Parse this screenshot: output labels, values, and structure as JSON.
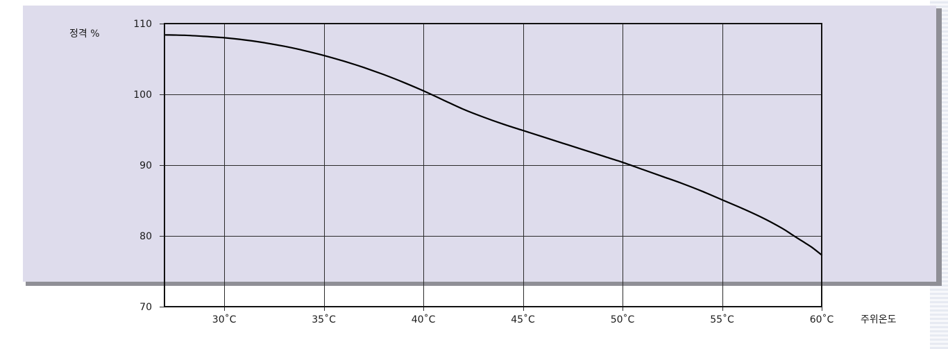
{
  "chart_data": {
    "type": "line",
    "title": "",
    "ylabel": "정격 %",
    "xlabel": "주위온도",
    "xlim": [
      27,
      60
    ],
    "ylim": [
      70,
      110
    ],
    "x_ticks": [
      {
        "value": 30,
        "label": "30˚C"
      },
      {
        "value": 35,
        "label": "35˚C"
      },
      {
        "value": 40,
        "label": "40˚C"
      },
      {
        "value": 45,
        "label": "45˚C"
      },
      {
        "value": 50,
        "label": "50˚C"
      },
      {
        "value": 55,
        "label": "55˚C"
      },
      {
        "value": 60,
        "label": "60˚C"
      }
    ],
    "y_ticks": [
      {
        "value": 70,
        "label": "70"
      },
      {
        "value": 80,
        "label": "80"
      },
      {
        "value": 90,
        "label": "90"
      },
      {
        "value": 100,
        "label": "100"
      },
      {
        "value": 110,
        "label": "110"
      }
    ],
    "grid": true,
    "series": [
      {
        "name": "",
        "x": [
          27,
          28,
          29,
          30,
          31,
          32,
          33,
          34,
          35,
          36,
          37,
          38,
          39,
          40,
          41,
          42,
          43,
          44,
          45,
          46,
          47,
          48,
          49,
          50,
          51,
          52,
          53,
          54,
          55,
          56,
          57,
          58,
          58.5,
          59,
          59.5,
          60
        ],
        "y": [
          108.4,
          108.35,
          108.2,
          108.0,
          107.7,
          107.3,
          106.8,
          106.2,
          105.5,
          104.7,
          103.8,
          102.8,
          101.7,
          100.5,
          99.2,
          97.9,
          96.8,
          95.8,
          94.9,
          94.0,
          93.1,
          92.2,
          91.3,
          90.4,
          89.4,
          88.4,
          87.4,
          86.3,
          85.1,
          83.9,
          82.6,
          81.1,
          80.2,
          79.3,
          78.4,
          77.3
        ]
      }
    ]
  }
}
